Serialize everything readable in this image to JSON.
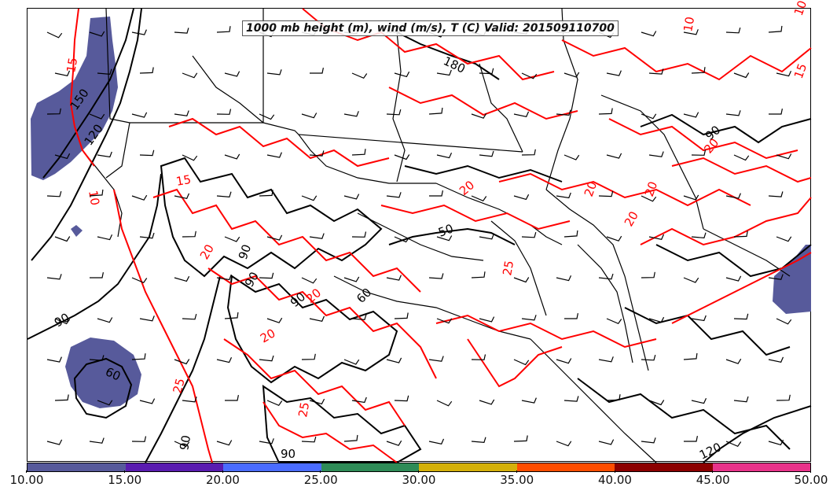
{
  "title": "1000 mb height (m), wind (m/s), T (C) Valid: 201509110700",
  "colorbar": {
    "ticks": [
      "10.00",
      "15.00",
      "20.00",
      "25.00",
      "30.00",
      "35.00",
      "40.00",
      "45.00",
      "50.00"
    ],
    "colors": [
      "#575a9b",
      "#5a1cb0",
      "#4a6cff",
      "#2e8b57",
      "#d4b00a",
      "#ff4d00",
      "#8b0000",
      "#e8338a"
    ]
  },
  "contour_colors": {
    "height": "#000000",
    "temperature": "#ff0000",
    "wind_shading": "#575a9b"
  },
  "height_labels": [
    "180",
    "150",
    "120",
    "90",
    "90",
    "90",
    "90",
    "60",
    "60",
    "50",
    "90",
    "120",
    "90",
    "90"
  ],
  "temperature_labels": [
    "15",
    "10",
    "15",
    "10",
    "10",
    "20",
    "20",
    "20",
    "20",
    "25",
    "15",
    "20",
    "20",
    "25",
    "20",
    "25",
    "20"
  ]
}
